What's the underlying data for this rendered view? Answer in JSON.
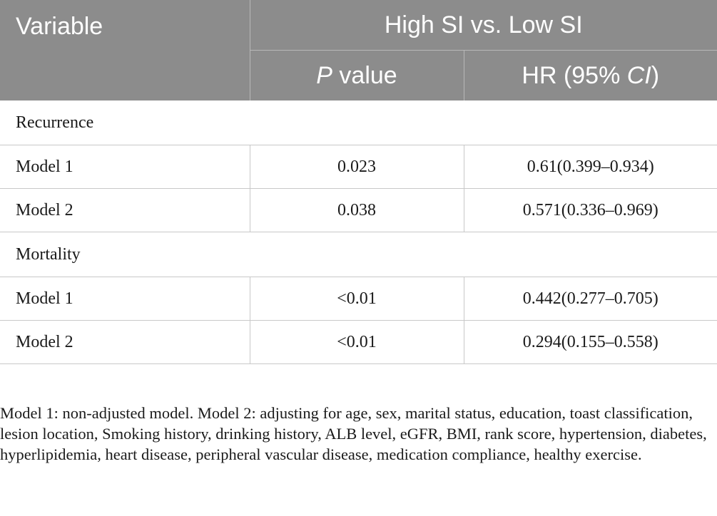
{
  "header": {
    "variable_label": "Variable",
    "group_label": "High SI vs. Low SI",
    "p_value_label_italic": "P",
    "p_value_label_rest": " value",
    "hr_label_prefix": "HR (95% ",
    "hr_label_italic": "CI",
    "hr_label_suffix": ")"
  },
  "sections": [
    {
      "title": "Recurrence",
      "rows": [
        {
          "label": "Model 1",
          "p_value": "0.023",
          "hr": "0.61(0.399–0.934)"
        },
        {
          "label": "Model 2",
          "p_value": "0.038",
          "hr": "0.571(0.336–0.969)"
        }
      ]
    },
    {
      "title": "Mortality",
      "rows": [
        {
          "label": "Model 1",
          "p_value": "<0.01",
          "hr": "0.442(0.277–0.705)"
        },
        {
          "label": "Model 2",
          "p_value": "<0.01",
          "hr": "0.294(0.155–0.558)"
        }
      ]
    }
  ],
  "footnote": "Model 1: non-adjusted model. Model 2: adjusting for age, sex, marital status, education, toast classification, lesion location, Smoking history, drinking history, ALB level, eGFR, BMI, rank score, hypertension, diabetes, hyperlipidemia, heart disease, peripheral vascular disease, medication compliance, healthy exercise."
}
